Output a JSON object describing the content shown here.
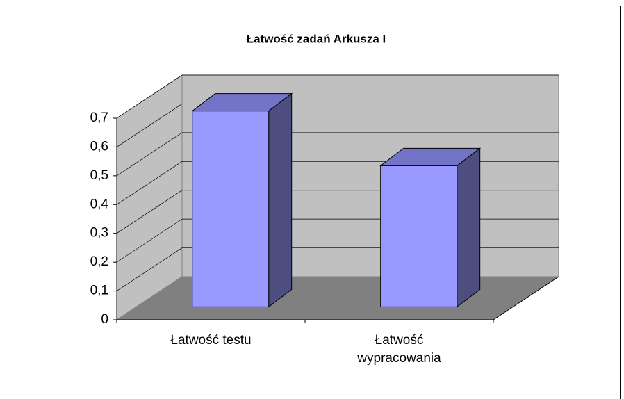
{
  "chart_data": {
    "type": "bar3d",
    "title": "Łatwość zadań Arkusza I",
    "categories": [
      "Łatwość testu",
      "Łatwość wypracowania"
    ],
    "values": [
      0.68,
      0.49
    ],
    "color": "#9999ff",
    "ylim": [
      0,
      0.7
    ],
    "yticks": [
      0,
      {
        "value": 0.1,
        "label": "0,1"
      },
      {
        "value": 0.2,
        "label": "0,2"
      },
      {
        "value": 0.3,
        "label": "0,3"
      },
      {
        "value": 0.4,
        "label": "0,4"
      },
      {
        "value": 0.5,
        "label": "0,5"
      },
      {
        "value": 0.6,
        "label": "0,6"
      },
      {
        "value": 0.7,
        "label": "0,7"
      }
    ],
    "grid": true
  }
}
